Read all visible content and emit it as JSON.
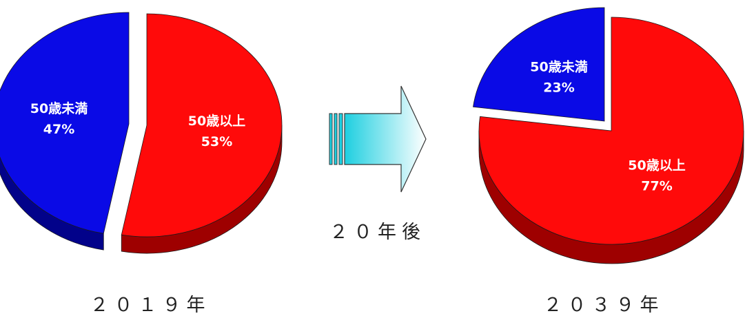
{
  "chart_data": [
    {
      "type": "pie",
      "title": "",
      "caption": "２０１９年",
      "slices": [
        {
          "label": "50歳未満",
          "value": 47,
          "value_label": "47%",
          "color": "#0a0ae6",
          "side_color": "#02028a",
          "exploded": true
        },
        {
          "label": "50歳以上",
          "value": 53,
          "value_label": "53%",
          "color": "#ff0a0a",
          "side_color": "#9e0000",
          "exploded": false
        }
      ],
      "style": "3d-exploded",
      "legend": "none"
    },
    {
      "type": "pie",
      "title": "",
      "caption": "２０３９年",
      "slices": [
        {
          "label": "50歳未満",
          "value": 23,
          "value_label": "23%",
          "color": "#0a0ae6",
          "side_color": "#02028a",
          "exploded": true
        },
        {
          "label": "50歳以上",
          "value": 77,
          "value_label": "77%",
          "color": "#ff0a0a",
          "side_color": "#9e0000",
          "exploded": false
        }
      ],
      "style": "3d-exploded",
      "legend": "none"
    }
  ],
  "transition": {
    "label": "２０年後",
    "icon": "arrow-right-icon",
    "gradient_from": "#1ecfe0",
    "gradient_to": "#ffffff"
  }
}
